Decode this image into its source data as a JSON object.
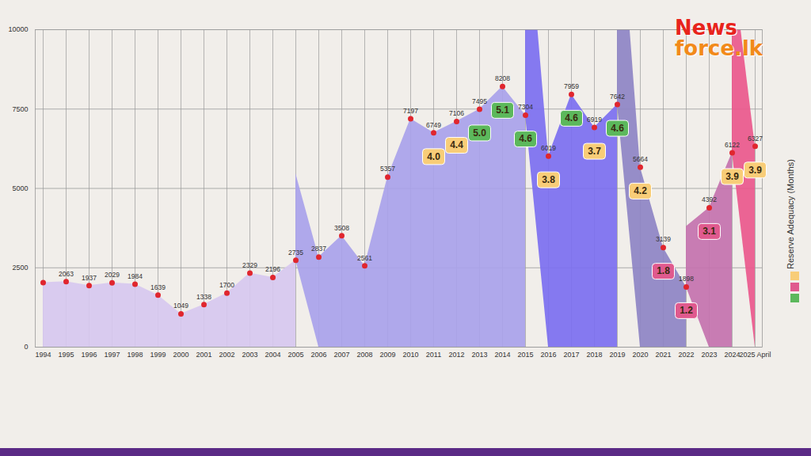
{
  "chart_data": {
    "type": "area",
    "categories": [
      "1994",
      "1995",
      "1996",
      "1997",
      "1998",
      "1999",
      "2000",
      "2001",
      "2002",
      "2003",
      "2004",
      "2005",
      "2006",
      "2007",
      "2008",
      "2009",
      "2010",
      "2011",
      "2012",
      "2013",
      "2014",
      "2015",
      "2016",
      "2017",
      "2018",
      "2019",
      "2020",
      "2021",
      "2022",
      "2023",
      "2024",
      "2025 April"
    ],
    "values": [
      2030,
      2063,
      1937,
      2029,
      1984,
      1639,
      1049,
      1338,
      1700,
      2329,
      2196,
      2735,
      2837,
      3508,
      2561,
      5357,
      7197,
      6749,
      7106,
      7495,
      8208,
      7304,
      6019,
      7959,
      6919,
      7642,
      5664,
      3139,
      1898,
      4392,
      6122,
      6327
    ],
    "value_labels": [
      null,
      "2063",
      "1937",
      "2029",
      "1984",
      "1639",
      "1049",
      "1338",
      "1700",
      "2329",
      "2196",
      "2735",
      "2837",
      "3508",
      "2561",
      "5357",
      "7197",
      "6749",
      "7106",
      "7495",
      "8208",
      "7304",
      "6019",
      "7959",
      "6919",
      "7642",
      "5664",
      "3139",
      "1898",
      "4392",
      "6122",
      "6327"
    ],
    "data_labels": true,
    "marker": "circle",
    "color": "#e0262e",
    "ylim": [
      0,
      10000
    ],
    "yticks": [
      0,
      2500,
      5000,
      7500,
      10000
    ],
    "grid": true,
    "segments": [
      {
        "start": "1994",
        "end": "2005",
        "color": "#d7c8ef"
      },
      {
        "start": "2005",
        "end": "2015",
        "color": "#a9a2ea"
      },
      {
        "start": "2015",
        "end": "2019",
        "color": "#7c6ff0"
      },
      {
        "start": "2019",
        "end": "2022",
        "color": "#8e84c4"
      },
      {
        "start": "2022",
        "end": "2024",
        "color": "#c472ae"
      },
      {
        "start": "2024",
        "end": "2025 April",
        "color": "#ea588c"
      }
    ],
    "reserve_adequacy": {
      "label": "Reserve Adequacy (Months)",
      "values": [
        null,
        null,
        null,
        null,
        null,
        null,
        null,
        null,
        null,
        null,
        null,
        null,
        null,
        null,
        null,
        null,
        null,
        4.0,
        4.4,
        5.0,
        5.1,
        4.6,
        3.8,
        4.6,
        3.7,
        4.6,
        4.2,
        1.8,
        1.2,
        3.1,
        3.9,
        3.9
      ],
      "value_labels": [
        null,
        null,
        null,
        null,
        null,
        null,
        null,
        null,
        null,
        null,
        null,
        null,
        null,
        null,
        null,
        null,
        null,
        "4.0",
        "4.4",
        "5.0",
        "5.1",
        "4.6",
        "3.8",
        "4.6",
        "3.7",
        "4.6",
        "4.2",
        "1.8",
        "1.2",
        "3.1",
        "3.9",
        "3.9"
      ],
      "colors": [
        null,
        null,
        null,
        null,
        null,
        null,
        null,
        null,
        null,
        null,
        null,
        null,
        null,
        null,
        null,
        null,
        null,
        "#f8cd78",
        "#f8cd78",
        "#5cb85c",
        "#5cb85c",
        "#5cb85c",
        "#f8cd78",
        "#5cb85c",
        "#f8cd78",
        "#5cb85c",
        "#f8cd78",
        "#e05a8e",
        "#e05a8e",
        "#e05a8e",
        "#f8cd78",
        "#f8cd78"
      ],
      "legend_colors": [
        "#f8cd78",
        "#e05a8e",
        "#5cb85c"
      ]
    },
    "logo": {
      "text": "News",
      "subtext": "force.lk"
    }
  }
}
